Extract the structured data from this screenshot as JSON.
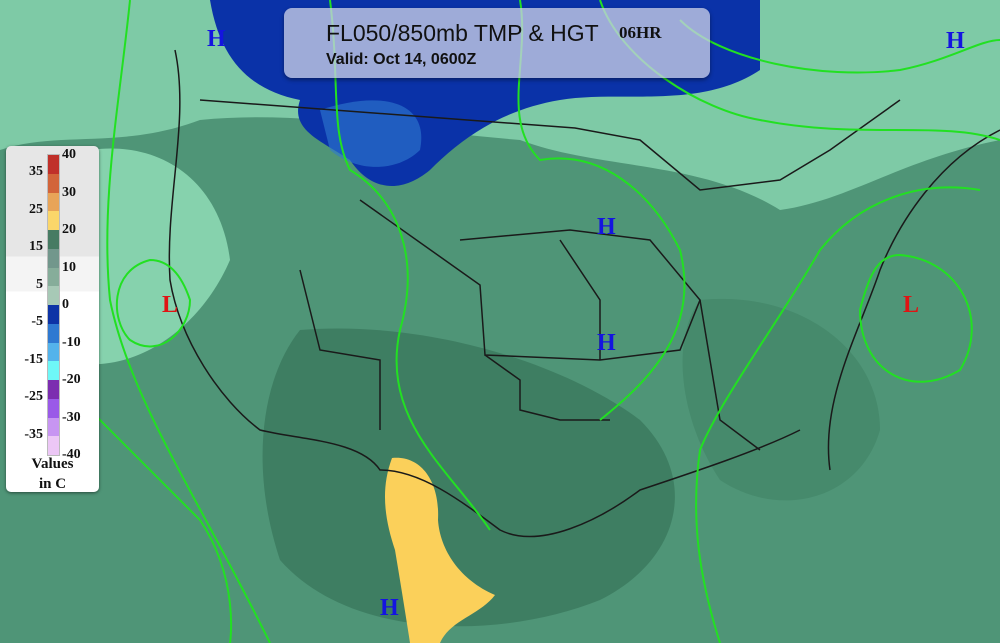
{
  "header": {
    "title": "FL050/850mb TMP & HGT",
    "forecast_hour": "06HR",
    "valid": "Valid: Oct 14, 0600Z"
  },
  "legend": {
    "units_line1": "Values",
    "units_line2": "in C",
    "colors": [
      "#c0302a",
      "#d2643a",
      "#e8a458",
      "#fbd66a",
      "#477b63",
      "#72978c",
      "#86ad9a",
      "#a7c9b6",
      "#0d33a6",
      "#2f79d1",
      "#54b3eb",
      "#6ef7f7",
      "#7c2db0",
      "#9a5ae8",
      "#c795f2",
      "#ecc7f6"
    ],
    "right_labels": [
      "40",
      "30",
      "20",
      "10",
      "0",
      "-10",
      "-20",
      "-30",
      "-40"
    ],
    "left_labels": [
      "35",
      "25",
      "15",
      "5",
      "-5",
      "-15",
      "-25",
      "-35"
    ]
  },
  "pressure_centers": [
    {
      "type": "H",
      "color": "#1414e0"
    },
    {
      "type": "H",
      "color": "#1414e0"
    },
    {
      "type": "H",
      "color": "#1414e0"
    },
    {
      "type": "H",
      "color": "#1414e0"
    },
    {
      "type": "H",
      "color": "#1414e0"
    },
    {
      "type": "L",
      "color": "#e01414"
    },
    {
      "type": "L",
      "color": "#e01414"
    }
  ],
  "contour_color": "#22e022"
}
